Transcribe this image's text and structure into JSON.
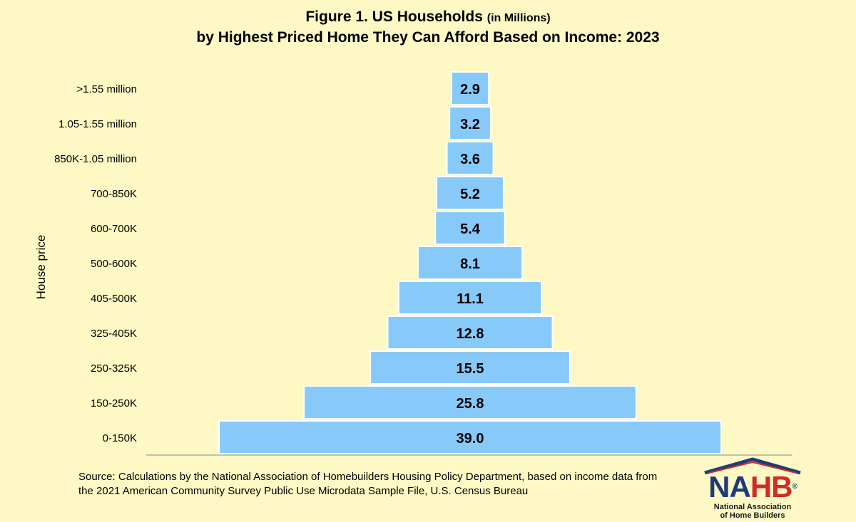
{
  "title_main_1": "Figure 1. US Households",
  "title_paren": "(in Millions)",
  "title_main_2": "by Highest Priced Home They Can Afford Based on Income: 2023",
  "ylabel": "House price",
  "source": "Source: Calculations by the National Association of Homebuilders Housing Policy Department, based on income data from the 2021 American Community Survey Public Use Microdata Sample File, U.S. Census Bureau",
  "logo": {
    "na": "NA",
    "hb": "HB",
    "reg": "®",
    "line1": "National Association",
    "line2": "of Home Builders"
  },
  "colors": {
    "bar": "#87cafa",
    "bar_border": "#ffffff",
    "background": "#fdf8c4",
    "logo_blue": "#1f3c7a",
    "logo_red": "#d12b2b"
  },
  "chart_data": {
    "type": "bar",
    "orientation": "horizontal-centered",
    "categories": [
      ">1.55 million",
      "1.05-1.55 million",
      "850K-1.05 million",
      "700-850K",
      "600-700K",
      "500-600K",
      "405-500K",
      "325-405K",
      "250-325K",
      "150-250K",
      "0-150K"
    ],
    "values": [
      2.9,
      3.2,
      3.6,
      5.2,
      5.4,
      8.1,
      11.1,
      12.8,
      15.5,
      25.8,
      39.0
    ],
    "labels": [
      "2.9",
      "3.2",
      "3.6",
      "5.2",
      "5.4",
      "8.1",
      "11.1",
      "12.8",
      "15.5",
      "25.8",
      "39.0"
    ],
    "ylabel": "House price",
    "grid": false,
    "legend": "none"
  }
}
